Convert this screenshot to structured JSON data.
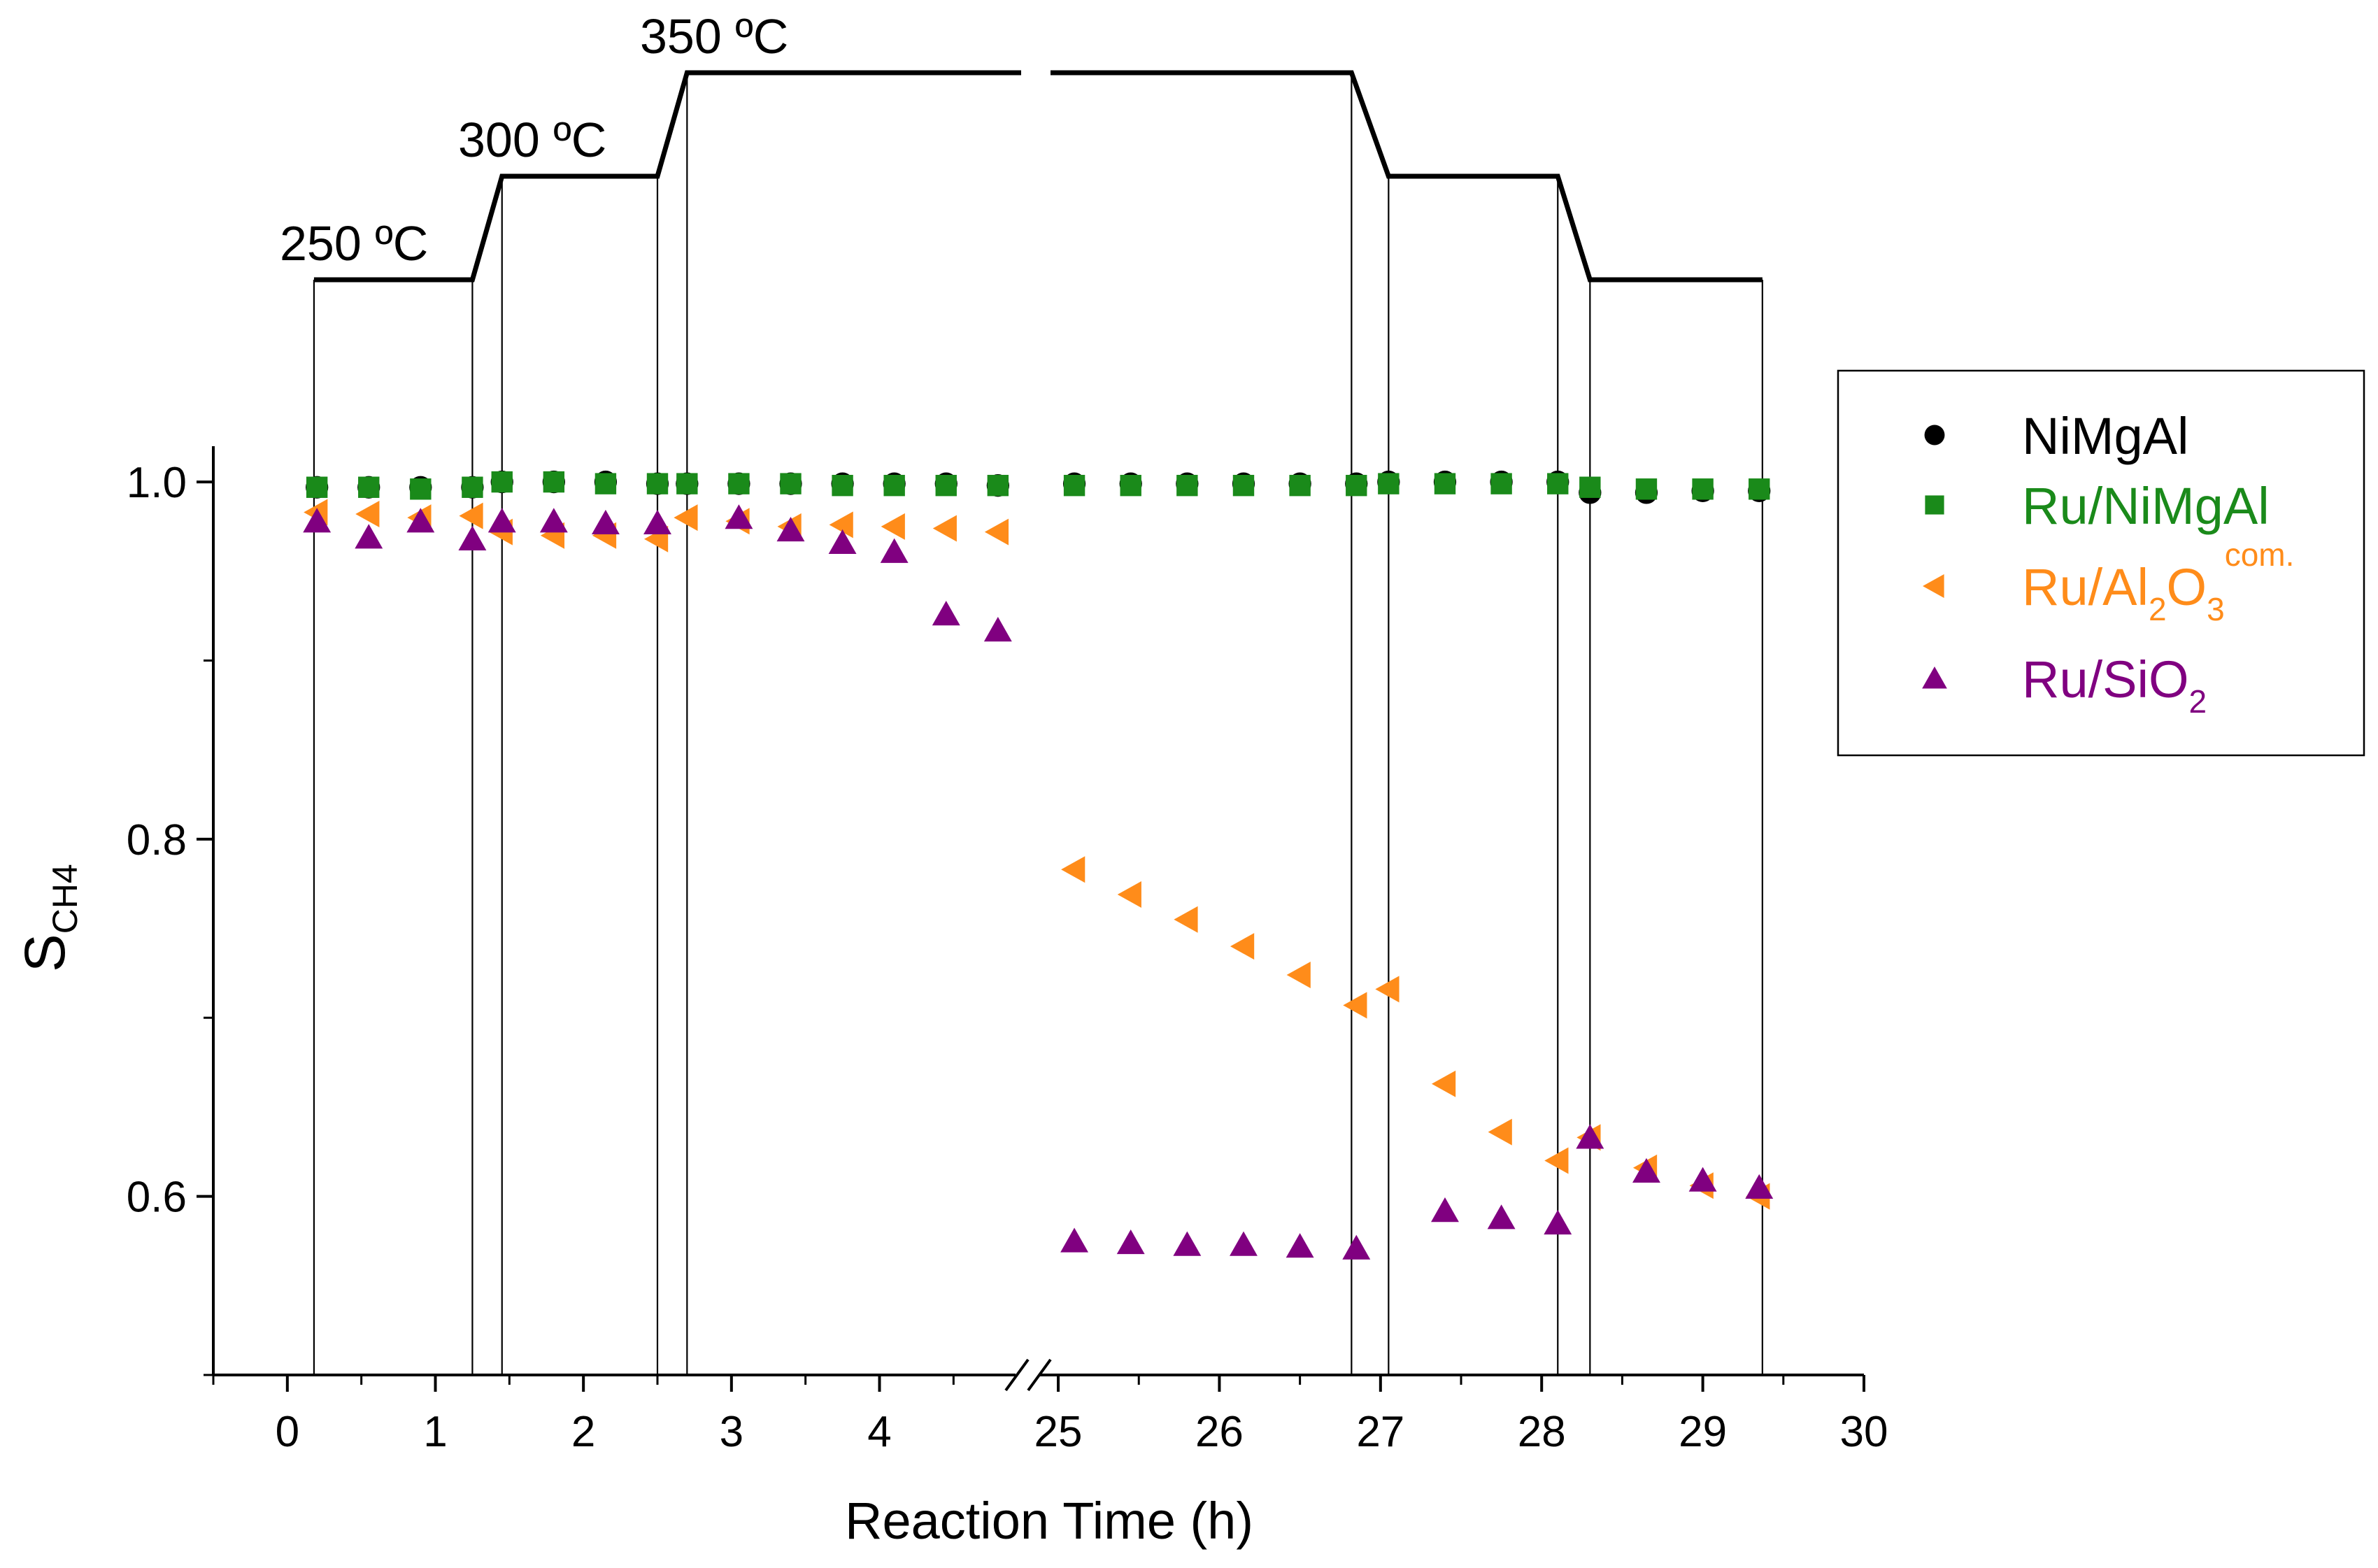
{
  "chart_data": {
    "type": "scatter",
    "xlabel": "Reaction Time (h)",
    "ylabel_main": "S",
    "ylabel_sub": "CH4",
    "ylim": [
      0.5,
      1.02
    ],
    "y_ticks": [
      0.6,
      0.8,
      1.0
    ],
    "y_tick_labels": [
      "0.6",
      "0.8",
      "1.0"
    ],
    "x_segments": [
      {
        "name": "left",
        "range": [
          -0.5,
          4.9
        ],
        "ticks": [
          0,
          1,
          2,
          3,
          4
        ],
        "tick_labels": [
          "0",
          "1",
          "2",
          "3",
          "4"
        ]
      },
      {
        "name": "right",
        "range": [
          24.9,
          30.0
        ],
        "ticks": [
          25,
          26,
          27,
          28,
          29,
          30
        ],
        "tick_labels": [
          "25",
          "26",
          "27",
          "28",
          "29",
          "30"
        ]
      }
    ],
    "axis_break": "//",
    "temperature_profile": {
      "labels": [
        "250 ºC",
        "300 ºC",
        "350 ºC"
      ],
      "levels": [
        250,
        300,
        350
      ],
      "points": [
        [
          0.18,
          250
        ],
        [
          1.25,
          250
        ],
        [
          1.45,
          300
        ],
        [
          2.5,
          300
        ],
        [
          2.7,
          350
        ],
        [
          26.82,
          350
        ],
        [
          27.05,
          300
        ],
        [
          28.1,
          300
        ],
        [
          28.3,
          250
        ],
        [
          29.37,
          250
        ]
      ]
    },
    "segment_lines_x": [
      0.18,
      1.25,
      1.45,
      2.5,
      2.7,
      26.82,
      27.05,
      28.1,
      28.3,
      29.37
    ],
    "series": [
      {
        "name": "NiMgAl",
        "sub": "",
        "sup": "",
        "marker": "circle",
        "color": "#000000",
        "x": [
          0.2,
          0.55,
          0.9,
          1.25,
          1.45,
          1.8,
          2.15,
          2.5,
          2.7,
          3.05,
          3.4,
          3.75,
          4.1,
          4.45,
          4.8,
          25.1,
          25.45,
          25.8,
          26.15,
          26.5,
          26.85,
          27.05,
          27.4,
          27.75,
          28.1,
          28.3,
          28.65,
          29.0,
          29.35
        ],
        "y": [
          0.997,
          0.997,
          0.997,
          0.997,
          1.0,
          1.0,
          1.0,
          0.999,
          0.999,
          0.999,
          0.999,
          0.999,
          0.999,
          0.999,
          0.998,
          0.999,
          0.999,
          0.999,
          0.999,
          0.999,
          0.999,
          1.0,
          1.0,
          1.0,
          1.0,
          0.994,
          0.994,
          0.995,
          0.995
        ]
      },
      {
        "name": "Ru/NiMgAl",
        "sub": "",
        "sup": "",
        "marker": "square",
        "color": "#1a8a1a",
        "x": [
          0.2,
          0.55,
          0.9,
          1.25,
          1.45,
          1.8,
          2.15,
          2.5,
          2.7,
          3.05,
          3.4,
          3.75,
          4.1,
          4.45,
          4.8,
          25.1,
          25.45,
          25.8,
          26.15,
          26.5,
          26.85,
          27.05,
          27.4,
          27.75,
          28.1,
          28.3,
          28.65,
          29.0,
          29.35
        ],
        "y": [
          0.997,
          0.997,
          0.996,
          0.997,
          1.0,
          1.0,
          0.999,
          0.999,
          0.999,
          0.999,
          0.999,
          0.998,
          0.998,
          0.998,
          0.998,
          0.998,
          0.998,
          0.998,
          0.998,
          0.998,
          0.998,
          0.999,
          0.999,
          0.999,
          0.999,
          0.997,
          0.996,
          0.996,
          0.996
        ]
      },
      {
        "name": "Ru/Al",
        "sub": "2",
        "sup": "com.",
        "tail_name": "O",
        "tail_sub": "3",
        "marker": "triangle-left",
        "color": "#ff8c1a",
        "x": [
          0.2,
          0.55,
          0.9,
          1.25,
          1.45,
          1.8,
          2.15,
          2.5,
          2.7,
          3.05,
          3.4,
          3.75,
          4.1,
          4.45,
          4.8,
          25.1,
          25.45,
          25.8,
          26.15,
          26.5,
          26.85,
          27.05,
          27.4,
          27.75,
          28.1,
          28.3,
          28.65,
          29.0,
          29.35
        ],
        "y": [
          0.983,
          0.982,
          0.98,
          0.981,
          0.972,
          0.97,
          0.97,
          0.968,
          0.98,
          0.978,
          0.975,
          0.976,
          0.975,
          0.974,
          0.972,
          0.783,
          0.769,
          0.755,
          0.74,
          0.724,
          0.707,
          0.716,
          0.663,
          0.636,
          0.62,
          0.633,
          0.616,
          0.606,
          0.6
        ]
      },
      {
        "name": "Ru/SiO",
        "sub": "2",
        "sup": "",
        "marker": "triangle-up",
        "color": "#800080",
        "x": [
          0.2,
          0.55,
          0.9,
          1.25,
          1.45,
          1.8,
          2.15,
          2.5,
          3.05,
          3.4,
          3.75,
          4.1,
          4.45,
          4.8,
          25.1,
          25.45,
          25.8,
          26.15,
          26.5,
          26.85,
          27.4,
          27.75,
          28.1,
          28.3,
          28.65,
          29.0,
          29.35
        ],
        "y": [
          0.978,
          0.969,
          0.978,
          0.968,
          0.978,
          0.978,
          0.977,
          0.977,
          0.98,
          0.973,
          0.966,
          0.961,
          0.926,
          0.917,
          0.575,
          0.574,
          0.573,
          0.573,
          0.572,
          0.571,
          0.592,
          0.588,
          0.585,
          0.633,
          0.614,
          0.609,
          0.605
        ]
      }
    ]
  }
}
